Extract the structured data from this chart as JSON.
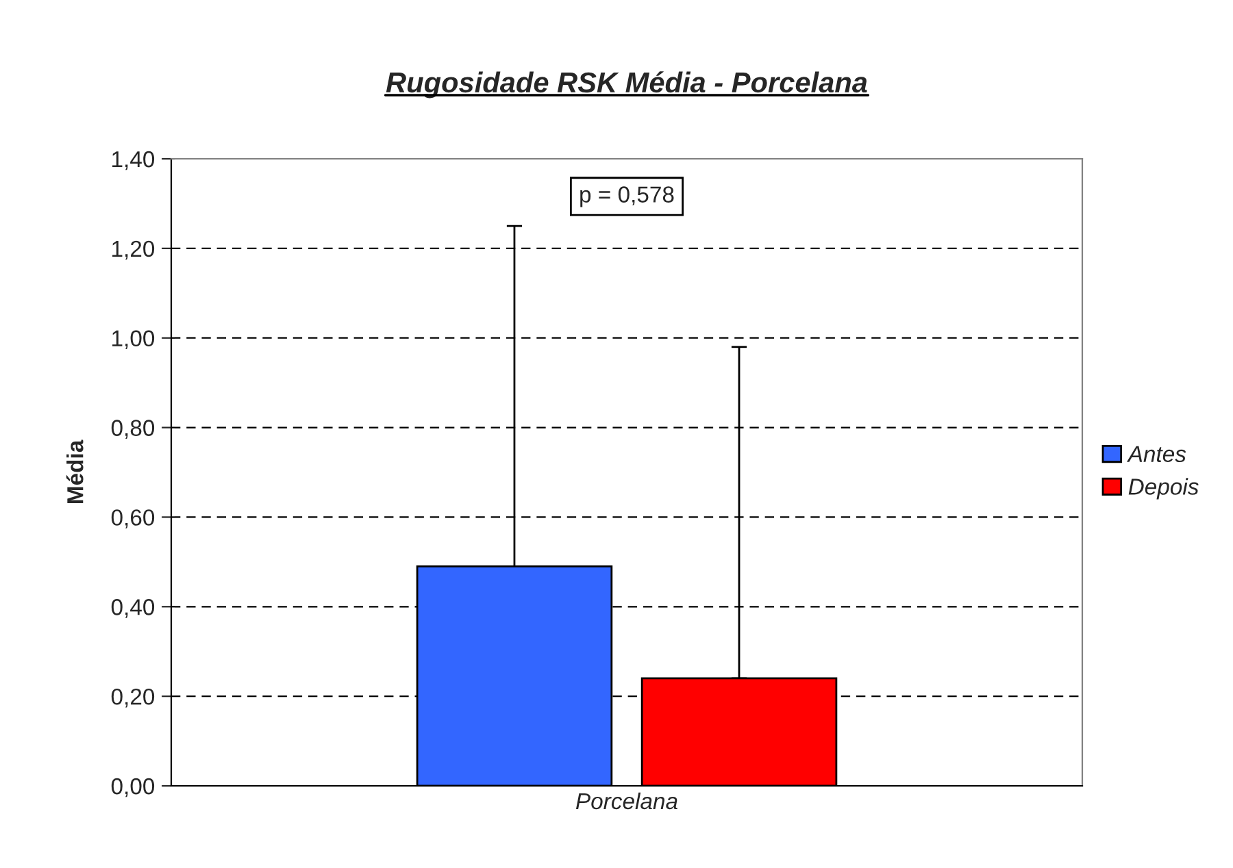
{
  "chart_data": {
    "type": "bar",
    "title": "Rugosidade RSK Média - Porcelana",
    "ylabel": "Média",
    "categories": [
      "Porcelana"
    ],
    "series": [
      {
        "name": "Antes",
        "color": "#3366ff",
        "values": [
          0.49
        ],
        "errors": [
          [
            0.49,
            1.25
          ]
        ]
      },
      {
        "name": "Depois",
        "color": "#ff0000",
        "values": [
          0.24
        ],
        "errors": [
          [
            0.24,
            0.98
          ]
        ]
      }
    ],
    "ylim": [
      0,
      1.4
    ],
    "yticks": [
      {
        "value": 0,
        "label": "0,00"
      },
      {
        "value": 0.2,
        "label": "0,20"
      },
      {
        "value": 0.4,
        "label": "0,40"
      },
      {
        "value": 0.6,
        "label": "0,60"
      },
      {
        "value": 0.8,
        "label": "0,80"
      },
      {
        "value": 1.0,
        "label": "1,00"
      },
      {
        "value": 1.2,
        "label": "1,20"
      },
      {
        "value": 1.4,
        "label": "1,40"
      }
    ],
    "grid": "y",
    "legend": "right",
    "annotations": [
      "p = 0,578"
    ]
  }
}
